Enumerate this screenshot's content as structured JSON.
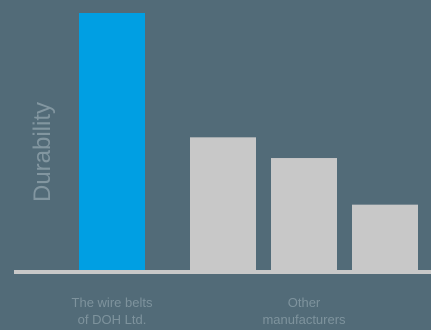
{
  "chart_data": {
    "type": "bar",
    "title": "",
    "xlabel": "",
    "ylabel": "Durability",
    "ylim": [
      0,
      100
    ],
    "grid": false,
    "legend": "none",
    "bars": [
      {
        "value": 100,
        "color": "#009fe3"
      },
      {
        "value": 52,
        "color": "#c8c8c8"
      },
      {
        "value": 44,
        "color": "#c8c8c8"
      },
      {
        "value": 26,
        "color": "#c8c8c8"
      }
    ],
    "groups": [
      {
        "label_lines": [
          "The wire belts",
          "of DOH Ltd."
        ],
        "bars": [
          0
        ]
      },
      {
        "label_lines": [
          "Other",
          "manufacturers"
        ],
        "bars": [
          1,
          2,
          3
        ]
      }
    ],
    "colors": {
      "background": "#526b78",
      "baseline": "#c8c8c8",
      "highlight": "#009fe3",
      "others": "#c8c8c8",
      "label_text": "#7e939d",
      "axis_title": "#8296a0"
    }
  }
}
